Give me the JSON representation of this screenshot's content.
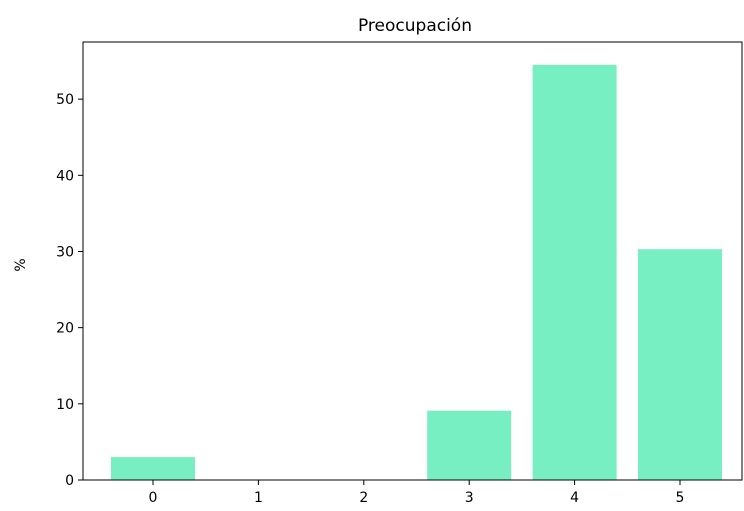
{
  "chart_data": {
    "type": "bar",
    "title": "Preocupación",
    "xlabel": "",
    "ylabel": "%",
    "categories": [
      "0",
      "1",
      "2",
      "3",
      "4",
      "5"
    ],
    "values": [
      3.0,
      0,
      0,
      9.1,
      54.5,
      30.3
    ],
    "ylim": [
      0,
      57.5
    ],
    "yticks": [
      0,
      10,
      20,
      30,
      40,
      50
    ],
    "bar_color": "#77efc3",
    "grid": false,
    "legend": "none"
  }
}
